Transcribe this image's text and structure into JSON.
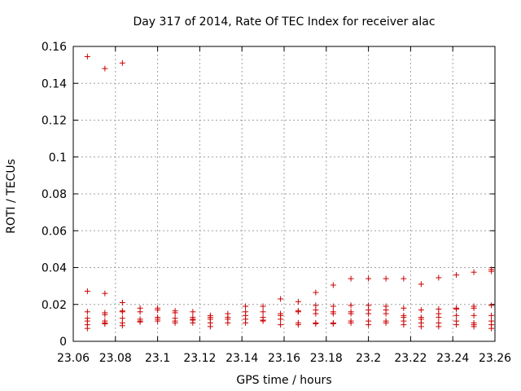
{
  "chart_data": {
    "type": "scatter",
    "title": "Day 317 of 2014, Rate Of TEC Index for receiver alac",
    "xlabel": "GPS time / hours",
    "ylabel": "ROTI / TECUs",
    "xlim": [
      23.06,
      23.26
    ],
    "ylim": [
      0,
      0.16
    ],
    "xticks": [
      23.06,
      23.08,
      23.1,
      23.12,
      23.14,
      23.16,
      23.18,
      23.2,
      23.22,
      23.24,
      23.26
    ],
    "xtick_labels": [
      "23.06",
      "23.08",
      "23.1",
      "23.12",
      "23.14",
      "23.16",
      "23.18",
      "23.2",
      "23.22",
      "23.24",
      "23.26"
    ],
    "yticks": [
      0,
      0.02,
      0.04,
      0.06,
      0.08,
      0.1,
      0.12,
      0.14,
      0.16
    ],
    "ytick_labels": [
      "0",
      "0.02",
      "0.04",
      "0.06",
      "0.08",
      "0.1",
      "0.12",
      "0.14",
      "0.16"
    ],
    "grid": true,
    "marker": "+",
    "color": "#cc0000",
    "series": [
      {
        "name": "ROTI",
        "points": [
          [
            23.0667,
            0.1545
          ],
          [
            23.0667,
            0.0272
          ],
          [
            23.0667,
            0.016
          ],
          [
            23.0667,
            0.0125
          ],
          [
            23.0667,
            0.011
          ],
          [
            23.0667,
            0.009
          ],
          [
            23.0667,
            0.007
          ],
          [
            23.075,
            0.148
          ],
          [
            23.075,
            0.026
          ],
          [
            23.075,
            0.0155
          ],
          [
            23.075,
            0.0145
          ],
          [
            23.075,
            0.011
          ],
          [
            23.075,
            0.01
          ],
          [
            23.075,
            0.0095
          ],
          [
            23.0833,
            0.151
          ],
          [
            23.0833,
            0.021
          ],
          [
            23.0833,
            0.0165
          ],
          [
            23.0833,
            0.016
          ],
          [
            23.0833,
            0.0125
          ],
          [
            23.0833,
            0.01
          ],
          [
            23.0833,
            0.0085
          ],
          [
            23.0917,
            0.018
          ],
          [
            23.0917,
            0.016
          ],
          [
            23.0917,
            0.012
          ],
          [
            23.0917,
            0.011
          ],
          [
            23.0917,
            0.0105
          ],
          [
            23.1,
            0.018
          ],
          [
            23.1,
            0.017
          ],
          [
            23.1,
            0.013
          ],
          [
            23.1,
            0.012
          ],
          [
            23.1,
            0.011
          ],
          [
            23.1083,
            0.0165
          ],
          [
            23.1083,
            0.0155
          ],
          [
            23.1083,
            0.0125
          ],
          [
            23.1083,
            0.011
          ],
          [
            23.1083,
            0.01
          ],
          [
            23.1167,
            0.016
          ],
          [
            23.1167,
            0.013
          ],
          [
            23.1167,
            0.012
          ],
          [
            23.1167,
            0.0115
          ],
          [
            23.1167,
            0.01
          ],
          [
            23.125,
            0.014
          ],
          [
            23.125,
            0.013
          ],
          [
            23.125,
            0.012
          ],
          [
            23.125,
            0.01
          ],
          [
            23.125,
            0.008
          ],
          [
            23.1333,
            0.015
          ],
          [
            23.1333,
            0.013
          ],
          [
            23.1333,
            0.012
          ],
          [
            23.1333,
            0.01
          ],
          [
            23.1417,
            0.019
          ],
          [
            23.1417,
            0.016
          ],
          [
            23.1417,
            0.014
          ],
          [
            23.1417,
            0.012
          ],
          [
            23.1417,
            0.01
          ],
          [
            23.15,
            0.019
          ],
          [
            23.15,
            0.016
          ],
          [
            23.15,
            0.013
          ],
          [
            23.15,
            0.0115
          ],
          [
            23.15,
            0.011
          ],
          [
            23.1583,
            0.023
          ],
          [
            23.1583,
            0.015
          ],
          [
            23.1583,
            0.014
          ],
          [
            23.1583,
            0.012
          ],
          [
            23.1583,
            0.009
          ],
          [
            23.1667,
            0.0215
          ],
          [
            23.1667,
            0.0165
          ],
          [
            23.1667,
            0.016
          ],
          [
            23.1667,
            0.01
          ],
          [
            23.1667,
            0.009
          ],
          [
            23.175,
            0.0265
          ],
          [
            23.175,
            0.0195
          ],
          [
            23.175,
            0.017
          ],
          [
            23.175,
            0.015
          ],
          [
            23.175,
            0.01
          ],
          [
            23.175,
            0.0095
          ],
          [
            23.1833,
            0.0305
          ],
          [
            23.1833,
            0.019
          ],
          [
            23.1833,
            0.016
          ],
          [
            23.1833,
            0.015
          ],
          [
            23.1833,
            0.01
          ],
          [
            23.1833,
            0.0095
          ],
          [
            23.1917,
            0.034
          ],
          [
            23.1917,
            0.0195
          ],
          [
            23.1917,
            0.016
          ],
          [
            23.1917,
            0.015
          ],
          [
            23.1917,
            0.011
          ],
          [
            23.1917,
            0.01
          ],
          [
            23.2,
            0.034
          ],
          [
            23.2,
            0.0195
          ],
          [
            23.2,
            0.017
          ],
          [
            23.2,
            0.015
          ],
          [
            23.2,
            0.011
          ],
          [
            23.2,
            0.009
          ],
          [
            23.2083,
            0.034
          ],
          [
            23.2083,
            0.019
          ],
          [
            23.2083,
            0.017
          ],
          [
            23.2083,
            0.015
          ],
          [
            23.2083,
            0.011
          ],
          [
            23.2083,
            0.01
          ],
          [
            23.2167,
            0.034
          ],
          [
            23.2167,
            0.018
          ],
          [
            23.2167,
            0.014
          ],
          [
            23.2167,
            0.013
          ],
          [
            23.2167,
            0.011
          ],
          [
            23.2167,
            0.009
          ],
          [
            23.225,
            0.031
          ],
          [
            23.225,
            0.017
          ],
          [
            23.225,
            0.013
          ],
          [
            23.225,
            0.012
          ],
          [
            23.225,
            0.01
          ],
          [
            23.225,
            0.008
          ],
          [
            23.2333,
            0.0345
          ],
          [
            23.2333,
            0.0175
          ],
          [
            23.2333,
            0.015
          ],
          [
            23.2333,
            0.013
          ],
          [
            23.2333,
            0.01
          ],
          [
            23.2333,
            0.008
          ],
          [
            23.2417,
            0.036
          ],
          [
            23.2417,
            0.018
          ],
          [
            23.2417,
            0.0175
          ],
          [
            23.2417,
            0.014
          ],
          [
            23.2417,
            0.011
          ],
          [
            23.2417,
            0.009
          ],
          [
            23.25,
            0.0375
          ],
          [
            23.25,
            0.019
          ],
          [
            23.25,
            0.018
          ],
          [
            23.25,
            0.014
          ],
          [
            23.25,
            0.01
          ],
          [
            23.25,
            0.009
          ],
          [
            23.25,
            0.008
          ],
          [
            23.2583,
            0.039
          ],
          [
            23.2583,
            0.038
          ],
          [
            23.2583,
            0.0195
          ],
          [
            23.2583,
            0.014
          ],
          [
            23.2583,
            0.011
          ],
          [
            23.2583,
            0.009
          ],
          [
            23.2583,
            0.007
          ]
        ]
      }
    ]
  }
}
